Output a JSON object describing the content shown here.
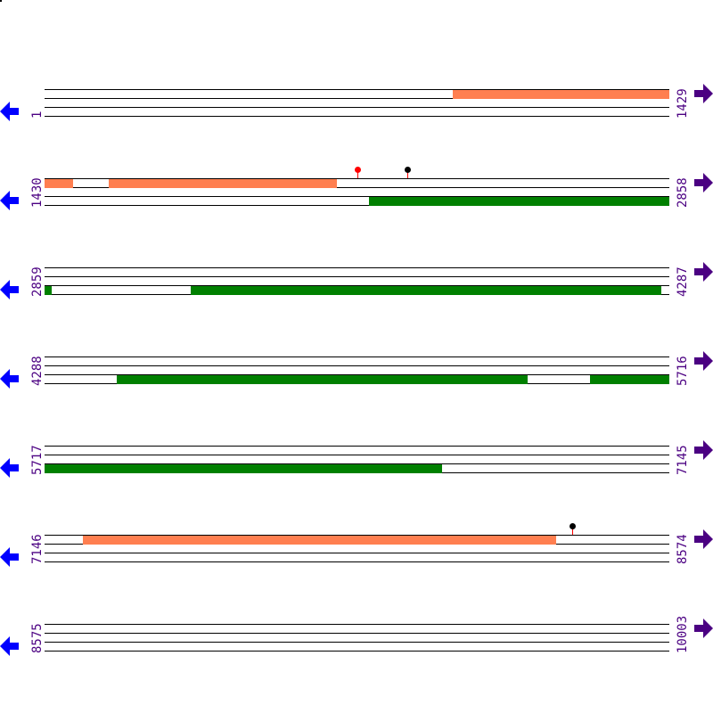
{
  "colors": {
    "forward_feature": "#ff7f50",
    "reverse_feature": "#008000",
    "left_arrow": "#0000ff",
    "right_arrow": "#4b0082",
    "label": "#4b0082"
  },
  "icons": {
    "left": "arrow-left-icon",
    "right": "arrow-right-icon"
  },
  "rows": [
    {
      "start": "1",
      "end": "1429",
      "s": 1,
      "e": 1429,
      "features": [
        {
          "strand": "top",
          "from": 935,
          "to": 1429,
          "color": "#ff7f50"
        }
      ],
      "markers": []
    },
    {
      "start": "1430",
      "end": "2858",
      "s": 1430,
      "e": 2858,
      "features": [
        {
          "strand": "top",
          "from": 1430,
          "to": 1495,
          "color": "#ff7f50"
        },
        {
          "strand": "top",
          "from": 1577,
          "to": 2099,
          "color": "#ff7f50"
        },
        {
          "strand": "bottom",
          "from": 2172,
          "to": 2858,
          "color": "#008000"
        }
      ],
      "markers": [
        {
          "pos": 2146,
          "head": "#ff0000",
          "stem": "#ff0000"
        },
        {
          "pos": 2260,
          "head": "#000000",
          "stem": "#ff0000"
        }
      ]
    },
    {
      "start": "2859",
      "end": "4287",
      "s": 2859,
      "e": 4287,
      "features": [
        {
          "strand": "bottom",
          "from": 2859,
          "to": 2875,
          "color": "#008000"
        },
        {
          "strand": "bottom",
          "from": 3193,
          "to": 4270,
          "color": "#008000"
        }
      ],
      "markers": []
    },
    {
      "start": "4288",
      "end": "5716",
      "s": 4288,
      "e": 5716,
      "features": [
        {
          "strand": "bottom",
          "from": 4453,
          "to": 5393,
          "color": "#008000"
        },
        {
          "strand": "bottom",
          "from": 5536,
          "to": 5716,
          "color": "#008000"
        }
      ],
      "markers": []
    },
    {
      "start": "5717",
      "end": "7145",
      "s": 5717,
      "e": 7145,
      "features": [
        {
          "strand": "bottom",
          "from": 5717,
          "to": 6626,
          "color": "#008000"
        }
      ],
      "markers": []
    },
    {
      "start": "7146",
      "end": "8574",
      "s": 7146,
      "e": 8574,
      "features": [
        {
          "strand": "top",
          "from": 7234,
          "to": 8316,
          "color": "#ff7f50"
        }
      ],
      "markers": [
        {
          "pos": 8353,
          "head": "#000000",
          "stem": "#ff0000"
        }
      ]
    },
    {
      "start": "8575",
      "end": "10003",
      "s": 8575,
      "e": 10003,
      "features": [],
      "markers": []
    }
  ]
}
